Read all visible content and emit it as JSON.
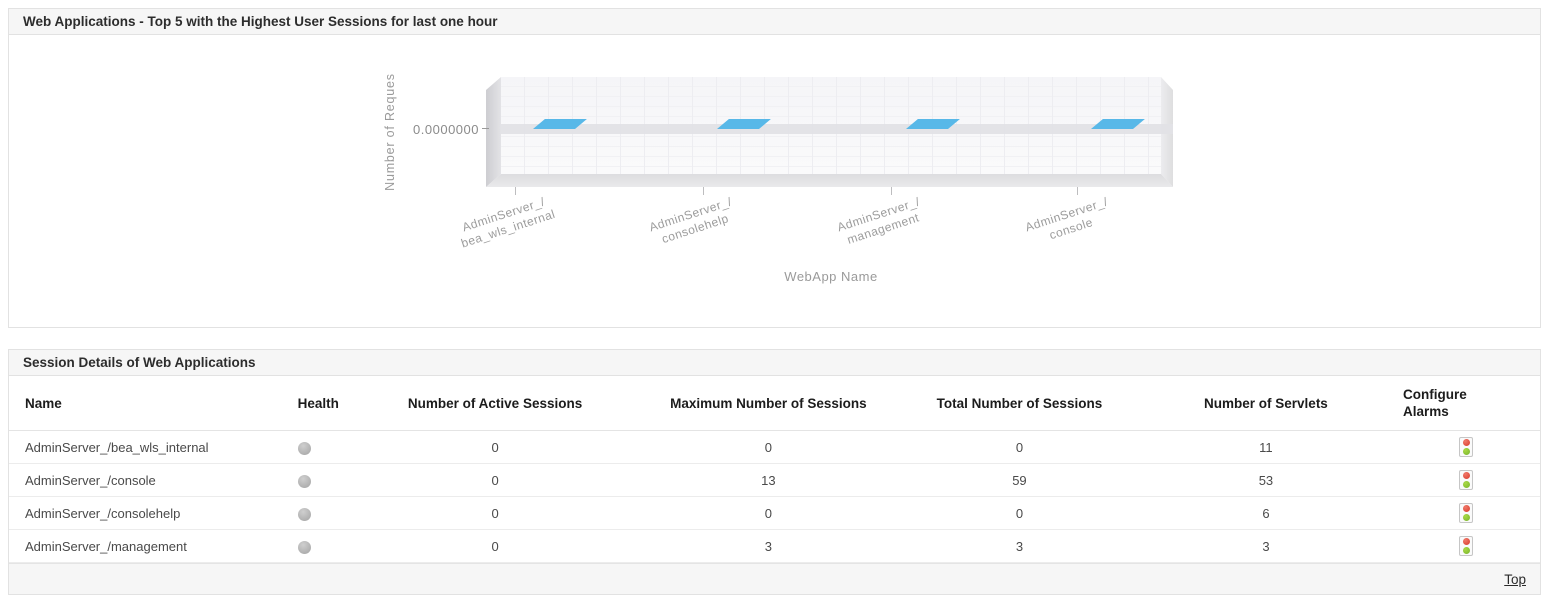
{
  "chart_panel": {
    "title": "Web Applications - Top 5 with the Highest User Sessions for last one hour"
  },
  "chart_data": {
    "type": "bar",
    "projection": "3d",
    "title": "",
    "xlabel": "WebApp Name",
    "ylabel": "Number of Reques",
    "y_ticks": [
      "0.0000000"
    ],
    "categories": [
      "AdminServer_/bea_wls_internal",
      "AdminServer_/consolehelp",
      "AdminServer_/management",
      "AdminServer_/console"
    ],
    "values": [
      0,
      0,
      0,
      0
    ],
    "bar_color": "#58b8e8",
    "legend": "none",
    "grid": true
  },
  "table_panel": {
    "title": "Session Details of Web Applications",
    "columns": [
      {
        "label": "Name"
      },
      {
        "label": "Health"
      },
      {
        "label": "Number of Active Sessions"
      },
      {
        "label": "Maximum Number of Sessions"
      },
      {
        "label": "Total Number of Sessions"
      },
      {
        "label": "Number of Servlets"
      },
      {
        "label": "Configure Alarms"
      }
    ],
    "rows": [
      {
        "name": "AdminServer_/bea_wls_internal",
        "health": "gray",
        "active": "0",
        "max": "0",
        "total": "0",
        "servlets": "11",
        "alarm_icon": "traffic-light"
      },
      {
        "name": "AdminServer_/console",
        "health": "gray",
        "active": "0",
        "max": "13",
        "total": "59",
        "servlets": "53",
        "alarm_icon": "traffic-light"
      },
      {
        "name": "AdminServer_/consolehelp",
        "health": "gray",
        "active": "0",
        "max": "0",
        "total": "0",
        "servlets": "6",
        "alarm_icon": "traffic-light"
      },
      {
        "name": "AdminServer_/management",
        "health": "gray",
        "active": "0",
        "max": "3",
        "total": "3",
        "servlets": "3",
        "alarm_icon": "traffic-light"
      }
    ],
    "footer": {
      "top_link": "Top"
    }
  },
  "colors": {
    "bar_blue": "#58b8e8",
    "alarm_red": "#d93a2b",
    "alarm_green": "#78b42c",
    "health_gray": "#a8a8a8",
    "panel_header_bg": "#f6f6f6"
  }
}
